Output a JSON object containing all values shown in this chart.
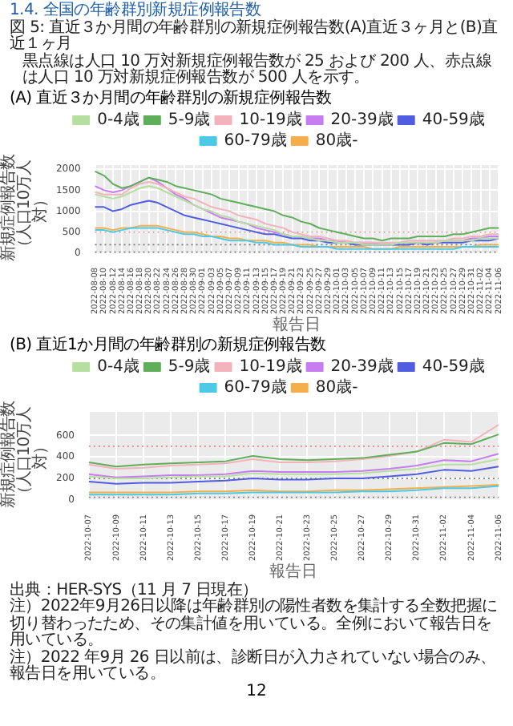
{
  "chart_data": [
    {
      "type": "line",
      "title": "(A) 直近３か月間の年齢群別の新規症例報告数",
      "annotations": [
        "1.4. 全国の年齢群別新規症例報告数",
        "図 5: 直近３か月間の年齢群別の新規症例報告数(A)直近３ヶ月と(B)直近１ヶ月",
        "黒点線は人口 10 万対新規症例報告数が 25 および 200 人、赤点線は人口 10 万対新規症例報告数が 500 人を示す。"
      ],
      "xlabel": "報告日",
      "ylabel": "新規症例報告数（人口10万人対）",
      "categories": [
        "2022-08-08",
        "2022-08-10",
        "2022-08-12",
        "2022-08-14",
        "2022-08-16",
        "2022-08-18",
        "2022-08-20",
        "2022-08-22",
        "2022-08-24",
        "2022-08-26",
        "2022-08-28",
        "2022-08-30",
        "2022-09-01",
        "2022-09-03",
        "2022-09-05",
        "2022-09-07",
        "2022-09-09",
        "2022-09-11",
        "2022-09-13",
        "2022-09-15",
        "2022-09-17",
        "2022-09-19",
        "2022-09-21",
        "2022-09-23",
        "2022-09-25",
        "2022-09-27",
        "2022-09-29",
        "2022-10-01",
        "2022-10-03",
        "2022-10-05",
        "2022-10-07",
        "2022-10-09",
        "2022-10-11",
        "2022-10-13",
        "2022-10-15",
        "2022-10-17",
        "2022-10-19",
        "2022-10-21",
        "2022-10-23",
        "2022-10-25",
        "2022-10-27",
        "2022-10-29",
        "2022-10-31",
        "2022-11-02",
        "2022-11-04",
        "2022-11-06"
      ],
      "series": [
        {
          "name": "0-4歳",
          "color": "#b5dfa0",
          "values": [
            1400,
            1350,
            1300,
            1350,
            1450,
            1550,
            1600,
            1550,
            1450,
            1350,
            1250,
            1150,
            1050,
            1000,
            900,
            850,
            750,
            700,
            650,
            600,
            550,
            450,
            400,
            400,
            350,
            300,
            300,
            250,
            250,
            250,
            200,
            200,
            200,
            200,
            250,
            250,
            250,
            250,
            250,
            300,
            300,
            300,
            300,
            350,
            350,
            350
          ]
        },
        {
          "name": "5-9歳",
          "color": "#5fae5a",
          "values": [
            1950,
            1850,
            1650,
            1550,
            1600,
            1700,
            1800,
            1750,
            1700,
            1600,
            1550,
            1500,
            1450,
            1400,
            1300,
            1250,
            1200,
            1150,
            1100,
            1050,
            1000,
            900,
            850,
            750,
            700,
            600,
            550,
            500,
            450,
            400,
            350,
            350,
            300,
            350,
            350,
            350,
            400,
            400,
            400,
            400,
            450,
            450,
            500,
            550,
            600,
            600
          ]
        },
        {
          "name": "10-19歳",
          "color": "#f2b3bd",
          "values": [
            1450,
            1400,
            1400,
            1400,
            1550,
            1650,
            1700,
            1650,
            1550,
            1450,
            1350,
            1300,
            1200,
            1100,
            1050,
            1000,
            900,
            850,
            800,
            700,
            650,
            600,
            500,
            450,
            400,
            400,
            350,
            300,
            300,
            250,
            250,
            250,
            250,
            250,
            250,
            300,
            300,
            300,
            300,
            300,
            350,
            350,
            400,
            400,
            450,
            450
          ]
        },
        {
          "name": "20-39歳",
          "color": "#c77cf0",
          "values": [
            1600,
            1500,
            1450,
            1500,
            1600,
            1700,
            1800,
            1700,
            1550,
            1400,
            1300,
            1150,
            1050,
            950,
            850,
            800,
            750,
            700,
            600,
            550,
            500,
            450,
            400,
            400,
            350,
            350,
            300,
            300,
            250,
            250,
            250,
            250,
            200,
            200,
            250,
            250,
            250,
            250,
            250,
            300,
            300,
            300,
            350,
            350,
            400,
            400
          ]
        },
        {
          "name": "40-59歳",
          "color": "#4f5de0",
          "values": [
            1100,
            1100,
            1000,
            1050,
            1150,
            1200,
            1250,
            1200,
            1100,
            1000,
            900,
            850,
            800,
            750,
            700,
            650,
            600,
            550,
            500,
            450,
            450,
            400,
            350,
            350,
            300,
            300,
            250,
            250,
            250,
            200,
            200,
            200,
            200,
            200,
            200,
            200,
            250,
            200,
            250,
            250,
            250,
            250,
            300,
            300,
            300,
            350
          ]
        },
        {
          "name": "60-79歳",
          "color": "#4dc9e6",
          "values": [
            550,
            550,
            500,
            550,
            600,
            600,
            600,
            600,
            550,
            500,
            450,
            450,
            400,
            400,
            350,
            300,
            300,
            300,
            250,
            250,
            200,
            200,
            200,
            150,
            150,
            150,
            150,
            100,
            100,
            100,
            100,
            100,
            100,
            100,
            100,
            100,
            100,
            100,
            100,
            100,
            100,
            150,
            150,
            150,
            150,
            150
          ]
        },
        {
          "name": "80歳-",
          "color": "#f3b04a",
          "values": [
            600,
            600,
            550,
            600,
            600,
            650,
            650,
            650,
            600,
            550,
            500,
            500,
            450,
            400,
            400,
            350,
            350,
            300,
            300,
            300,
            250,
            250,
            200,
            200,
            200,
            150,
            150,
            150,
            150,
            150,
            150,
            100,
            100,
            100,
            150,
            150,
            150,
            150,
            150,
            150,
            150,
            150,
            150,
            200,
            200,
            200
          ]
        }
      ],
      "ylim": [
        0,
        2100
      ],
      "yticks": [
        0,
        500,
        1000,
        1500,
        2000
      ],
      "grid": true,
      "legend": "top",
      "marker": "none",
      "line_style": "solid",
      "ref_lines": [
        {
          "axis": "y",
          "value": 25,
          "color": "#777777",
          "line_style": "dotted"
        },
        {
          "axis": "y",
          "value": 200,
          "color": "#777777",
          "line_style": "dotted"
        },
        {
          "axis": "y",
          "value": 500,
          "color": "#f08080",
          "line_style": "dotted"
        }
      ]
    },
    {
      "type": "line",
      "title": "(B) 直近1か月間の年齢群別の新規症例報告数",
      "annotations": [
        "出典：HER-SYS（11 月 7 日現在）",
        "注）2022年9月26日以降は年齢群別の陽性者数を集計する全数把握に切り替わったため、その集計値を用いている。全例において報告日を用いている。",
        "注）2022 年9月 26 日以前は、診断日が入力されていない場合のみ、報告日を用いている。",
        "12"
      ],
      "xlabel": "報告日",
      "ylabel": "新規症例報告数（人口10万人対）",
      "categories": [
        "2022-10-07",
        "2022-10-09",
        "2022-10-11",
        "2022-10-13",
        "2022-10-15",
        "2022-10-17",
        "2022-10-19",
        "2022-10-21",
        "2022-10-23",
        "2022-10-25",
        "2022-10-27",
        "2022-10-29",
        "2022-10-31",
        "2022-11-02",
        "2022-11-04",
        "2022-11-06"
      ],
      "series": [
        {
          "name": "0-4歳",
          "color": "#b5dfa0",
          "values": [
            220,
            200,
            200,
            210,
            220,
            220,
            250,
            240,
            240,
            240,
            250,
            270,
            290,
            330,
            330,
            380
          ]
        },
        {
          "name": "5-9歳",
          "color": "#5fae5a",
          "values": [
            350,
            310,
            330,
            340,
            350,
            360,
            410,
            380,
            370,
            380,
            390,
            420,
            450,
            530,
            520,
            610
          ]
        },
        {
          "name": "10-19歳",
          "color": "#f2b3bd",
          "values": [
            330,
            290,
            300,
            320,
            330,
            340,
            380,
            350,
            350,
            360,
            380,
            410,
            450,
            560,
            540,
            700
          ]
        },
        {
          "name": "20-39歳",
          "color": "#c77cf0",
          "values": [
            240,
            210,
            220,
            230,
            230,
            240,
            270,
            260,
            260,
            260,
            270,
            290,
            320,
            370,
            360,
            430
          ]
        },
        {
          "name": "40-59歳",
          "color": "#4f5de0",
          "values": [
            170,
            150,
            160,
            160,
            170,
            180,
            200,
            190,
            190,
            200,
            200,
            220,
            240,
            280,
            270,
            310
          ]
        },
        {
          "name": "60-79歳",
          "color": "#4dc9e6",
          "values": [
            50,
            50,
            50,
            50,
            60,
            60,
            70,
            70,
            70,
            70,
            80,
            80,
            90,
            110,
            110,
            130
          ]
        },
        {
          "name": "80歳-",
          "color": "#f3b04a",
          "values": [
            70,
            70,
            70,
            70,
            80,
            80,
            90,
            80,
            80,
            90,
            90,
            100,
            110,
            120,
            130,
            140
          ]
        }
      ],
      "ylim": [
        0,
        820
      ],
      "yticks": [
        0,
        200,
        400,
        600
      ],
      "grid": true,
      "legend": "top",
      "marker": "none",
      "line_style": "solid",
      "ref_lines": [
        {
          "axis": "y",
          "value": 25,
          "color": "#777777",
          "line_style": "dotted"
        },
        {
          "axis": "y",
          "value": 200,
          "color": "#777777",
          "line_style": "dotted"
        },
        {
          "axis": "y",
          "value": 500,
          "color": "#f08080",
          "line_style": "dotted"
        }
      ]
    }
  ]
}
